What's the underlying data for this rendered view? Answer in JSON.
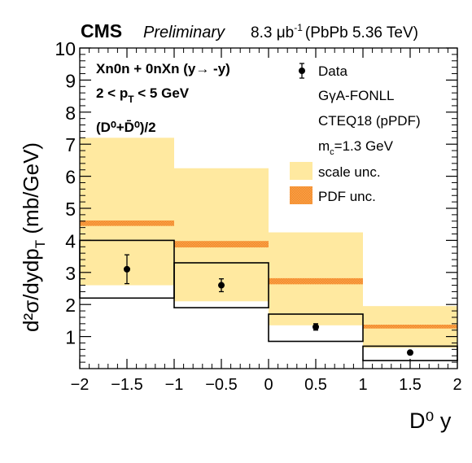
{
  "chart_data": {
    "type": "bar",
    "header": {
      "experiment": "CMS",
      "status": "Preliminary",
      "lumi_value": "8.3",
      "lumi_unit_prefix": "μb",
      "lumi_exp": "-1",
      "system": "(PbPb 5.36 TeV)"
    },
    "annotations": {
      "line1": "Xn0n + 0nXn (y→ -y)",
      "line2_lhs": "2 < p",
      "line2_sub": "T",
      "line2_rhs": " < 5 GeV",
      "line3": "(D⁰+D̄⁰)/2"
    },
    "xlabel": "D⁰ y",
    "ylabel": "d²σ/dydp",
    "ylabel_sub": "T",
    "ylabel_unit": " (mb/GeV)",
    "xlim": [
      -2,
      2
    ],
    "ylim": [
      0,
      10
    ],
    "x_major_ticks": [
      -2,
      -1.5,
      -1,
      -0.5,
      0,
      0.5,
      1,
      1.5,
      2
    ],
    "x_tick_labels": [
      "−2",
      "−1.5",
      "−1",
      "−0.5",
      "0",
      "0.5",
      "1",
      "1.5",
      "2"
    ],
    "y_major_ticks": [
      1,
      2,
      3,
      4,
      5,
      6,
      7,
      8,
      9,
      10
    ],
    "bin_edges": [
      -2,
      -1,
      0,
      1,
      2
    ],
    "bin_centers": [
      -1.5,
      -0.5,
      0.5,
      1.5
    ],
    "series": [
      {
        "name": "Data",
        "values": [
          3.1,
          2.6,
          1.3,
          0.5
        ],
        "stat_err": [
          0.45,
          0.2,
          0.1,
          0.05
        ],
        "syst_box_low": [
          2.2,
          1.9,
          0.85,
          0.25
        ],
        "syst_box_high": [
          4.0,
          3.3,
          1.7,
          0.7
        ]
      },
      {
        "name": "scale unc.",
        "low": [
          2.6,
          2.1,
          1.35,
          0.65
        ],
        "high": [
          7.2,
          6.25,
          4.25,
          1.95
        ]
      },
      {
        "name": "PDF unc.",
        "low": [
          4.45,
          3.78,
          2.63,
          1.25
        ],
        "high": [
          4.62,
          3.98,
          2.82,
          1.37
        ]
      }
    ],
    "legend": {
      "position": "top-right",
      "data_label": "Data",
      "model_line1": "GγA-FONLL",
      "model_line2": "CTEQ18 (pPDF)",
      "mc_label": "m",
      "mc_sub": "c",
      "mc_value": "=1.3 GeV",
      "scale_label": "scale unc.",
      "pdf_label": "PDF unc."
    },
    "colors": {
      "scale_band": "#ffe9a0",
      "pdf_band": "#f7a24b",
      "pdf_hatch": "#f48a2a",
      "syst_box": "#000000",
      "marker": "#000000"
    }
  }
}
